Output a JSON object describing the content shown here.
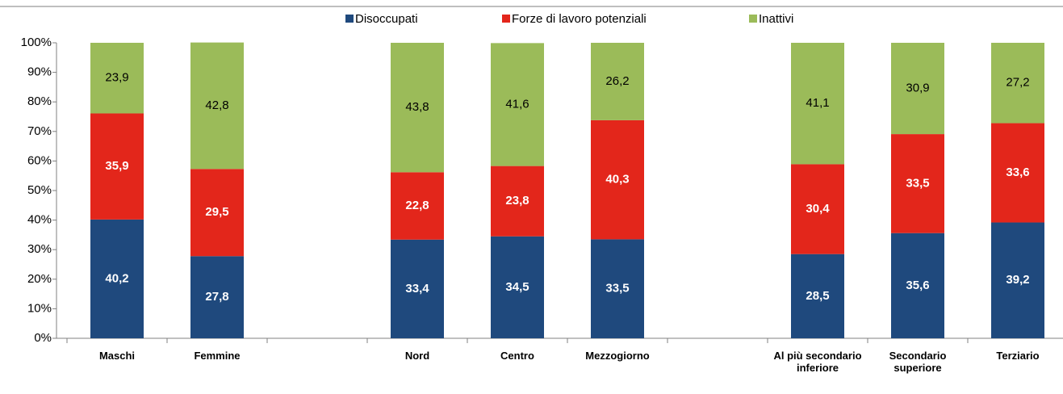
{
  "chart_data": {
    "type": "stacked_bar",
    "categories": [
      "Maschi",
      "Femmine",
      null,
      "Nord",
      "Centro",
      "Mezzogiorno",
      null,
      "Al più secondario inferiore",
      "Secondario superiore",
      "Terziario"
    ],
    "series": [
      {
        "name": "Disoccupati",
        "color": "#1f497d",
        "values": [
          40.2,
          27.8,
          null,
          33.4,
          34.5,
          33.5,
          null,
          28.5,
          35.6,
          39.2
        ],
        "value_labels": [
          "40,2",
          "27,8",
          null,
          "33,4",
          "34,5",
          "33,5",
          null,
          "28,5",
          "35,6",
          "39,2"
        ]
      },
      {
        "name": "Forze di lavoro potenziali",
        "color": "#e3261b",
        "values": [
          35.9,
          29.5,
          null,
          22.8,
          23.8,
          40.3,
          null,
          30.4,
          33.5,
          33.6
        ],
        "value_labels": [
          "35,9",
          "29,5",
          null,
          "22,8",
          "23,8",
          "40,3",
          null,
          "30,4",
          "33,5",
          "33,6"
        ]
      },
      {
        "name": "Inattivi",
        "color": "#9bbb59",
        "values": [
          23.9,
          42.8,
          null,
          43.8,
          41.6,
          26.2,
          null,
          41.1,
          30.9,
          27.2
        ],
        "value_labels": [
          "23,9",
          "42,8",
          null,
          "43,8",
          "41,6",
          "26,2",
          null,
          "41,1",
          "30,9",
          "27,2"
        ]
      }
    ],
    "ylim": [
      0,
      100
    ],
    "yticks": [
      {
        "value": 0,
        "label": "0%"
      },
      {
        "value": 10,
        "label": "10%"
      },
      {
        "value": 20,
        "label": "20%"
      },
      {
        "value": 30,
        "label": "30%"
      },
      {
        "value": 40,
        "label": "40%"
      },
      {
        "value": 50,
        "label": "50%"
      },
      {
        "value": 60,
        "label": "60%"
      },
      {
        "value": 70,
        "label": "70%"
      },
      {
        "value": 80,
        "label": "80%"
      },
      {
        "value": 90,
        "label": "90%"
      },
      {
        "value": 100,
        "label": "100%"
      }
    ],
    "legend": "top"
  }
}
